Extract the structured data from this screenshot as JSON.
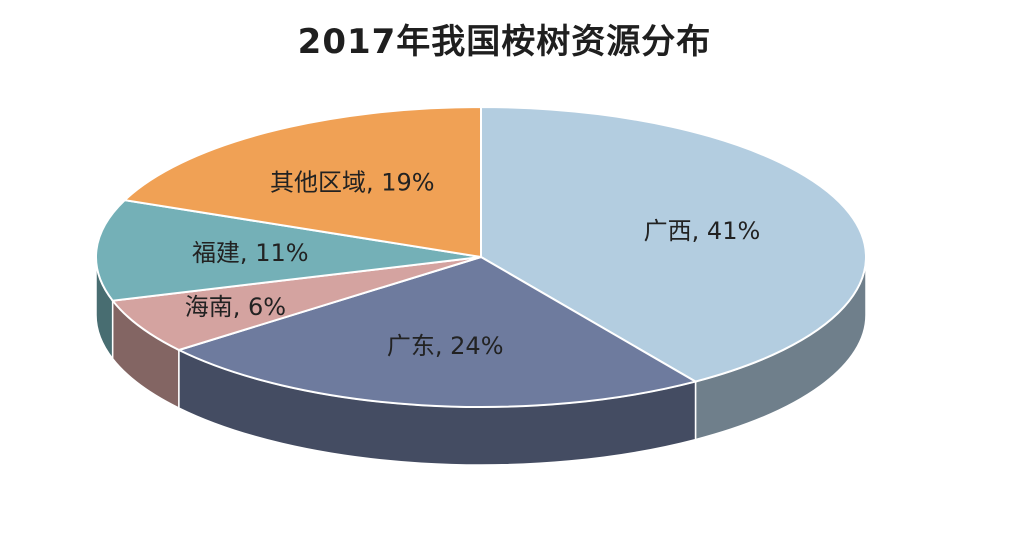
{
  "chart_data": {
    "type": "pie",
    "title": "2017年我国桉树资源分布",
    "slices": [
      {
        "label": "广西",
        "value": 41,
        "color": "#b3cde0"
      },
      {
        "label": "广东",
        "value": 24,
        "color": "#6e7b9e"
      },
      {
        "label": "海南",
        "value": 6,
        "color": "#d4a3a0"
      },
      {
        "label": "福建",
        "value": 11,
        "color": "#74b0b7"
      },
      {
        "label": "其他区域",
        "value": 19,
        "color": "#f0a155"
      }
    ],
    "labels": [
      "广西, 41%",
      "广东, 24%",
      "海南, 6%",
      "福建, 11%",
      "其他区域, 19%"
    ],
    "style": "3d-pie"
  }
}
